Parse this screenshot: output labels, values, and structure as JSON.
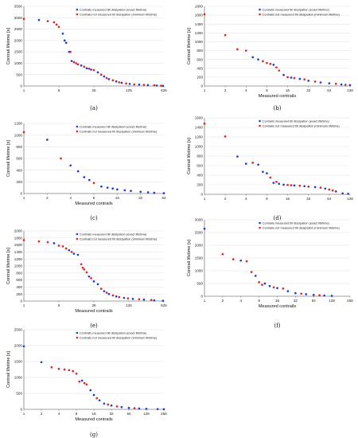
{
  "chart_data": [
    {
      "panel_label": "(a)",
      "type": "scatter",
      "xscale": "log",
      "xlim": [
        1,
        625
      ],
      "xticks": [
        1,
        5,
        25,
        125,
        625
      ],
      "ylim": [
        0,
        3500
      ],
      "yticks": [
        0,
        500,
        1000,
        1500,
        2000,
        2500,
        3000,
        3500
      ],
      "xlabel": "",
      "ylabel": "Contrail lifetime [s]",
      "legend_position": "top-right",
      "series": [
        {
          "name": "Contrails measured till dissipation (exact lifetime)",
          "color": "#1f3fd6",
          "points": [
            [
              2,
              2900
            ],
            [
              6,
              2300
            ],
            [
              6.5,
              2000
            ],
            [
              7,
              1900
            ],
            [
              8,
              1500
            ],
            [
              9,
              1100
            ],
            [
              14,
              900
            ],
            [
              18,
              780
            ],
            [
              22,
              720
            ],
            [
              30,
              600
            ],
            [
              40,
              420
            ],
            [
              50,
              300
            ],
            [
              70,
              200
            ],
            [
              90,
              140
            ],
            [
              130,
              90
            ],
            [
              200,
              60
            ],
            [
              300,
              40
            ],
            [
              450,
              20
            ],
            [
              600,
              5
            ]
          ]
        },
        {
          "name": "Contrails not measured till dissipation (minimum lifetime)",
          "color": "#e0262b",
          "points": [
            [
              1,
              2950
            ],
            [
              3,
              2850
            ],
            [
              4,
              2800
            ],
            [
              4.5,
              2700
            ],
            [
              5,
              2600
            ],
            [
              8.5,
              1500
            ],
            [
              10,
              1050
            ],
            [
              11,
              1000
            ],
            [
              12,
              950
            ],
            [
              16,
              850
            ],
            [
              20,
              760
            ],
            [
              25,
              700
            ],
            [
              35,
              500
            ],
            [
              45,
              350
            ],
            [
              60,
              250
            ],
            [
              80,
              160
            ],
            [
              110,
              110
            ],
            [
              160,
              70
            ],
            [
              250,
              50
            ],
            [
              400,
              30
            ],
            [
              550,
              12
            ]
          ]
        }
      ]
    },
    {
      "panel_label": "(b)",
      "type": "scatter",
      "xscale": "log",
      "xlim": [
        1,
        128
      ],
      "xticks": [
        1,
        2,
        4,
        8,
        16,
        32,
        64,
        128
      ],
      "ylim": [
        0,
        1800
      ],
      "yticks": [
        0,
        200,
        400,
        600,
        800,
        1000,
        1200,
        1400,
        1600,
        1800
      ],
      "xlabel": "Measured contrails",
      "ylabel": "Contrail lifetime [s]",
      "legend_position": "top-right",
      "series": [
        {
          "name": "Contrails measured till dissipation (exact lifetime)",
          "color": "#1f3fd6",
          "points": [
            [
              5,
              650
            ],
            [
              6,
              600
            ],
            [
              10,
              480
            ],
            [
              14,
              250
            ],
            [
              18,
              190
            ],
            [
              24,
              160
            ],
            [
              32,
              120
            ],
            [
              48,
              80
            ],
            [
              64,
              60
            ],
            [
              96,
              35
            ],
            [
              128,
              20
            ]
          ]
        },
        {
          "name": "Contrails not measured till dissipation (minimum lifetime)",
          "color": "#e0262b",
          "points": [
            [
              1,
              1620
            ],
            [
              2,
              1150
            ],
            [
              3,
              830
            ],
            [
              4,
              800
            ],
            [
              7,
              560
            ],
            [
              8,
              520
            ],
            [
              9,
              500
            ],
            [
              11,
              420
            ],
            [
              12,
              350
            ],
            [
              16,
              200
            ],
            [
              20,
              180
            ],
            [
              28,
              150
            ],
            [
              40,
              100
            ],
            [
              80,
              50
            ],
            [
              110,
              28
            ]
          ]
        }
      ]
    },
    {
      "panel_label": "(c)",
      "type": "scatter",
      "xscale": "log",
      "xlim": [
        1,
        64
      ],
      "xticks": [
        1,
        2,
        4,
        8,
        16,
        32,
        64
      ],
      "ylim": [
        0,
        1200
      ],
      "yticks": [
        0,
        200,
        400,
        600,
        800,
        1000,
        1200
      ],
      "xlabel": "Measured contrails",
      "ylabel": "Contrail lifetime [s]",
      "legend_position": "top-right",
      "series": [
        {
          "name": "Contrails measured till dissipation (exact lifetime)",
          "color": "#1f3fd6",
          "points": [
            [
              2,
              920
            ],
            [
              4,
              480
            ],
            [
              5,
              380
            ],
            [
              6,
              280
            ],
            [
              7,
              230
            ],
            [
              10,
              120
            ],
            [
              12,
              100
            ],
            [
              14,
              85
            ],
            [
              16,
              70
            ],
            [
              20,
              55
            ],
            [
              24,
              45
            ],
            [
              32,
              30
            ],
            [
              40,
              20
            ],
            [
              48,
              12
            ],
            [
              64,
              5
            ]
          ]
        },
        {
          "name": "Contrails not measured till dissipation (minimum lifetime)",
          "color": "#e0262b",
          "points": [
            [
              1,
              1050
            ],
            [
              3,
              600
            ],
            [
              8,
              180
            ]
          ]
        }
      ]
    },
    {
      "panel_label": "(d)",
      "type": "scatter",
      "xscale": "log",
      "xlim": [
        1,
        128
      ],
      "xticks": [
        1,
        2,
        4,
        8,
        16,
        32,
        64,
        128
      ],
      "ylim": [
        0,
        1600
      ],
      "yticks": [
        0,
        200,
        400,
        600,
        800,
        1000,
        1200,
        1400,
        1600
      ],
      "xlabel": "",
      "ylabel": "Contrail lifetime [s]",
      "legend_position": "top-right",
      "series": [
        {
          "name": "Contrails measured till dissipation (exact lifetime)",
          "color": "#1f3fd6",
          "points": [
            [
              3,
              790
            ],
            [
              4,
              640
            ],
            [
              6,
              620
            ],
            [
              7,
              470
            ],
            [
              8,
              440
            ],
            [
              10,
              240
            ],
            [
              12,
              220
            ],
            [
              14,
              200
            ],
            [
              20,
              185
            ],
            [
              28,
              170
            ],
            [
              40,
              150
            ],
            [
              56,
              120
            ],
            [
              80,
              60
            ],
            [
              100,
              20
            ],
            [
              120,
              10
            ]
          ]
        },
        {
          "name": "Contrails not measured till dissipation (minimum lifetime)",
          "color": "#e0262b",
          "points": [
            [
              1,
              1480
            ],
            [
              2,
              1210
            ],
            [
              5,
              660
            ],
            [
              9,
              350
            ],
            [
              11,
              260
            ],
            [
              16,
              195
            ],
            [
              18,
              190
            ],
            [
              24,
              180
            ],
            [
              32,
              160
            ],
            [
              48,
              140
            ],
            [
              64,
              100
            ],
            [
              72,
              80
            ]
          ]
        }
      ]
    },
    {
      "panel_label": "(e)",
      "type": "scatter",
      "xscale": "log",
      "xlim": [
        1,
        625
      ],
      "xticks": [
        1,
        5,
        25,
        125,
        625
      ],
      "ylim": [
        0,
        2000
      ],
      "yticks": [
        0,
        200,
        400,
        600,
        800,
        1000,
        1200,
        1400,
        1600,
        1800,
        2000
      ],
      "xlabel": "Measured contrails",
      "ylabel": "Contrail lifetime [s]",
      "legend_position": "top-right",
      "series": [
        {
          "name": "Contrails measured till dissipation (exact lifetime)",
          "color": "#1f3fd6",
          "points": [
            [
              4,
              1650
            ],
            [
              8,
              1450
            ],
            [
              10,
              1350
            ],
            [
              12,
              1320
            ],
            [
              20,
              700
            ],
            [
              25,
              560
            ],
            [
              30,
              480
            ],
            [
              40,
              280
            ],
            [
              50,
              200
            ],
            [
              70,
              130
            ],
            [
              100,
              90
            ],
            [
              150,
              60
            ],
            [
              250,
              40
            ],
            [
              400,
              20
            ],
            [
              600,
              5
            ]
          ]
        },
        {
          "name": "Contrails not measured till dissipation (minimum lifetime)",
          "color": "#e0262b",
          "points": [
            [
              1,
              1740
            ],
            [
              2,
              1700
            ],
            [
              3,
              1680
            ],
            [
              5,
              1580
            ],
            [
              6,
              1560
            ],
            [
              7,
              1500
            ],
            [
              9,
              1400
            ],
            [
              14,
              1050
            ],
            [
              15,
              950
            ],
            [
              16,
              900
            ],
            [
              18,
              820
            ],
            [
              22,
              650
            ],
            [
              35,
              350
            ],
            [
              45,
              240
            ],
            [
              60,
              160
            ],
            [
              80,
              110
            ],
            [
              120,
              75
            ],
            [
              200,
              50
            ],
            [
              350,
              30
            ]
          ]
        }
      ]
    },
    {
      "panel_label": "(f)",
      "type": "scatter",
      "xscale": "log",
      "xlim": [
        1,
        256
      ],
      "xticks": [
        1,
        2,
        4,
        8,
        16,
        32,
        64,
        128,
        256
      ],
      "ylim": [
        0,
        3000
      ],
      "yticks": [
        0,
        500,
        1000,
        1500,
        2000,
        2500,
        3000
      ],
      "xlabel": "Measured contrails",
      "ylabel": "Contrail lifetime [s]",
      "legend_position": "top-right",
      "series": [
        {
          "name": "Contrails measured till dissipation (exact lifetime)",
          "color": "#1f3fd6",
          "points": [
            [
              1,
              2650
            ],
            [
              4,
              1400
            ],
            [
              7,
              800
            ],
            [
              10,
              500
            ],
            [
              12,
              400
            ],
            [
              16,
              320
            ],
            [
              24,
              200
            ],
            [
              32,
              120
            ],
            [
              48,
              80
            ],
            [
              64,
              50
            ],
            [
              96,
              30
            ],
            [
              128,
              15
            ]
          ]
        },
        {
          "name": "Contrails not measured till dissipation (minimum lifetime)",
          "color": "#e0262b",
          "points": [
            [
              2,
              1650
            ],
            [
              3,
              1450
            ],
            [
              5,
              1370
            ],
            [
              6,
              950
            ],
            [
              8,
              550
            ],
            [
              9,
              450
            ],
            [
              14,
              350
            ],
            [
              20,
              300
            ],
            [
              40,
              100
            ],
            [
              80,
              40
            ]
          ]
        }
      ]
    },
    {
      "panel_label": "(g)",
      "type": "scatter",
      "xscale": "log",
      "xlim": [
        1,
        256
      ],
      "xticks": [
        1,
        2,
        4,
        8,
        16,
        32,
        64,
        128,
        256
      ],
      "ylim": [
        0,
        2500
      ],
      "yticks": [
        0,
        500,
        1000,
        1500,
        2000,
        2500
      ],
      "xlabel": "Measured contrails",
      "ylabel": "Contrail lifetime [s]",
      "legend_position": "top-right",
      "series": [
        {
          "name": "Contrails measured till dissipation (exact lifetime)",
          "color": "#1f3fd6",
          "points": [
            [
              1,
              1980
            ],
            [
              2,
              1480
            ],
            [
              10,
              900
            ],
            [
              14,
              600
            ],
            [
              16,
              450
            ],
            [
              20,
              280
            ],
            [
              24,
              180
            ],
            [
              32,
              120
            ],
            [
              48,
              70
            ],
            [
              64,
              45
            ],
            [
              96,
              25
            ],
            [
              128,
              15
            ],
            [
              200,
              8
            ],
            [
              256,
              3
            ]
          ]
        },
        {
          "name": "Contrails not measured till dissipation (minimum lifetime)",
          "color": "#e0262b",
          "points": [
            [
              3,
              1320
            ],
            [
              4,
              1270
            ],
            [
              5,
              1250
            ],
            [
              6,
              1230
            ],
            [
              7,
              1200
            ],
            [
              8,
              1120
            ],
            [
              9,
              870
            ],
            [
              11,
              820
            ],
            [
              12,
              780
            ],
            [
              18,
              350
            ],
            [
              28,
              150
            ],
            [
              40,
              90
            ],
            [
              80,
              35
            ]
          ]
        }
      ]
    }
  ]
}
